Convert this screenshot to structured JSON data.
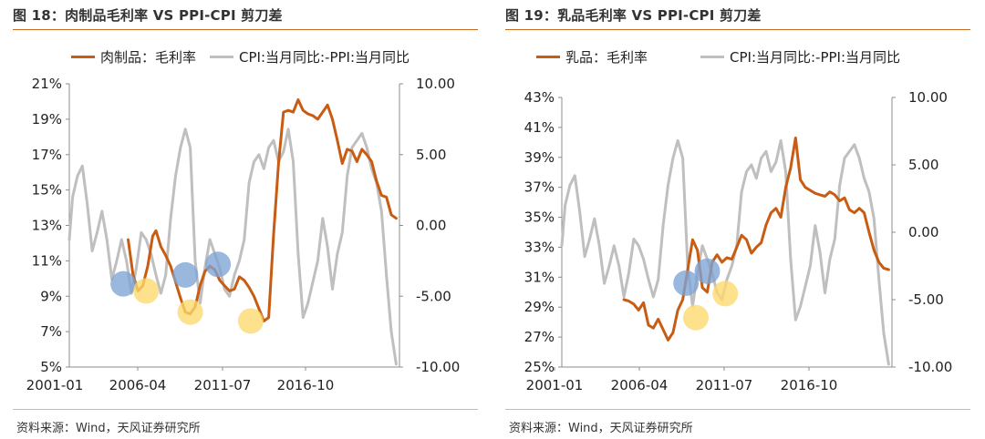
{
  "source_text": "资料来源：Wind，天风证券研究所",
  "colors": {
    "primary": "#c85c13",
    "secondary": "#bfbfbf",
    "bubble_blue": "#7ea3d3",
    "bubble_yellow": "#fcd96d"
  },
  "chart_data": [
    {
      "type": "line",
      "title": "图 18：肉制品毛利率 VS PPI-CPI 剪刀差",
      "legend": [
        "肉制品：毛利率",
        "CPI:当月同比:-PPI:当月同比"
      ],
      "legend_placement": "top",
      "x_ticks": [
        "2001-01",
        "2006-04",
        "2011-07",
        "2016-10"
      ],
      "y_left": {
        "ticks": [
          "21%",
          "19%",
          "17%",
          "15%",
          "13%",
          "11%",
          "9%",
          "7%",
          "5%"
        ],
        "range": [
          5,
          21
        ]
      },
      "y_right": {
        "ticks": [
          "10.00",
          "5.00",
          "0.00",
          "-5.00",
          "-10.00"
        ],
        "range": [
          -10,
          10
        ]
      },
      "x_range": [
        2001.0,
        2021.2
      ],
      "series": [
        {
          "name": "肉制品：毛利率",
          "axis": "left",
          "x": [
            2004.6,
            2004.9,
            2005.2,
            2005.5,
            2005.8,
            2006.1,
            2006.3,
            2006.6,
            2006.9,
            2007.2,
            2007.5,
            2007.8,
            2008.1,
            2008.4,
            2008.7,
            2009.0,
            2009.3,
            2009.6,
            2009.9,
            2010.2,
            2010.5,
            2010.8,
            2011.1,
            2011.4,
            2011.7,
            2012.0,
            2012.3,
            2012.6,
            2012.9,
            2013.2,
            2013.5,
            2013.8,
            2014.1,
            2014.4,
            2014.7,
            2015.0,
            2015.3,
            2015.6,
            2015.9,
            2016.2,
            2016.5,
            2016.8,
            2017.1,
            2017.4,
            2017.7,
            2018.0,
            2018.3,
            2018.6,
            2018.9,
            2019.2,
            2019.5,
            2019.8,
            2020.1,
            2020.4,
            2020.7,
            2021.0
          ],
          "values": [
            12.2,
            10.2,
            9.3,
            9.6,
            10.7,
            12.4,
            12.7,
            11.8,
            11.3,
            10.7,
            9.8,
            8.9,
            8.1,
            8.0,
            8.4,
            9.6,
            10.4,
            10.7,
            10.5,
            9.9,
            9.6,
            9.3,
            9.4,
            10.1,
            9.9,
            9.5,
            9.0,
            8.3,
            7.6,
            7.8,
            12.5,
            16.5,
            19.4,
            19.5,
            19.4,
            20.1,
            19.5,
            19.3,
            19.2,
            19.0,
            19.4,
            19.8,
            19.0,
            17.8,
            16.5,
            17.3,
            17.2,
            16.6,
            17.3,
            17.0,
            16.6,
            15.5,
            14.7,
            14.6,
            13.6,
            13.4
          ]
        },
        {
          "name": "CPI:当月同比:-PPI:当月同比",
          "axis": "right",
          "x": [
            2001.0,
            2001.2,
            2001.5,
            2001.8,
            2002.1,
            2002.4,
            2002.7,
            2003.0,
            2003.3,
            2003.6,
            2003.9,
            2004.2,
            2004.5,
            2004.8,
            2005.1,
            2005.4,
            2005.7,
            2006.0,
            2006.3,
            2006.6,
            2006.9,
            2007.2,
            2007.5,
            2007.8,
            2008.1,
            2008.4,
            2008.7,
            2009.0,
            2009.3,
            2009.6,
            2009.9,
            2010.2,
            2010.5,
            2010.8,
            2011.1,
            2011.4,
            2011.7,
            2012.0,
            2012.3,
            2012.6,
            2012.9,
            2013.2,
            2013.5,
            2013.8,
            2014.1,
            2014.4,
            2014.7,
            2015.0,
            2015.3,
            2015.6,
            2015.9,
            2016.2,
            2016.5,
            2016.8,
            2017.1,
            2017.4,
            2017.7,
            2018.0,
            2018.3,
            2018.6,
            2018.9,
            2019.2,
            2019.5,
            2019.8,
            2020.1,
            2020.4,
            2020.7,
            2021.0
          ],
          "values": [
            -1.0,
            2.0,
            3.5,
            4.2,
            1.5,
            -1.8,
            -0.5,
            1.0,
            -1.0,
            -3.8,
            -2.5,
            -1.0,
            -2.5,
            -4.8,
            -3.0,
            -0.5,
            -1.0,
            -2.0,
            -3.5,
            -4.8,
            -3.5,
            0.5,
            3.5,
            5.5,
            6.8,
            5.5,
            -2.5,
            -5.5,
            -3.0,
            -1.0,
            -2.0,
            -3.0,
            -4.5,
            -5.0,
            -3.5,
            -2.5,
            -1.0,
            3.0,
            4.5,
            5.0,
            4.0,
            5.5,
            6.0,
            4.5,
            5.2,
            6.8,
            4.5,
            -2.0,
            -6.5,
            -5.5,
            -4.0,
            -2.5,
            0.5,
            -1.5,
            -4.5,
            -2.0,
            -0.5,
            3.5,
            5.5,
            6.0,
            6.5,
            5.5,
            4.0,
            3.0,
            1.0,
            -3.5,
            -7.5,
            -9.8
          ]
        }
      ],
      "highlights": [
        {
          "x": 2004.3,
          "y": 9.7,
          "color": "blue"
        },
        {
          "x": 2005.7,
          "y": 9.3,
          "color": "yellow"
        },
        {
          "x": 2008.1,
          "y": 10.2,
          "color": "blue"
        },
        {
          "x": 2008.4,
          "y": 8.1,
          "color": "yellow"
        },
        {
          "x": 2010.1,
          "y": 10.8,
          "color": "blue"
        },
        {
          "x": 2012.1,
          "y": 7.6,
          "color": "yellow"
        }
      ]
    },
    {
      "type": "line",
      "title": "图 19：乳品毛利率 VS PPI-CPI 剪刀差",
      "legend": [
        "乳品：毛利率",
        "CPI:当月同比:-PPI:当月同比"
      ],
      "legend_placement": "top",
      "x_ticks": [
        "2001-01",
        "2006-04",
        "2011-07",
        "2016-10"
      ],
      "y_left": {
        "ticks": [
          "43%",
          "41%",
          "39%",
          "37%",
          "35%",
          "33%",
          "31%",
          "29%",
          "27%",
          "25%"
        ],
        "range": [
          25,
          43
        ]
      },
      "y_right": {
        "ticks": [
          "10.00",
          "5.00",
          "0.00",
          "-5.00",
          "-10.00"
        ],
        "range": [
          -10,
          10
        ]
      },
      "x_range": [
        2001.0,
        2021.2
      ],
      "series": [
        {
          "name": "乳品：毛利率",
          "axis": "left",
          "x": [
            2004.8,
            2005.1,
            2005.4,
            2005.7,
            2006.0,
            2006.3,
            2006.6,
            2006.9,
            2007.2,
            2007.5,
            2007.8,
            2008.1,
            2008.4,
            2008.7,
            2009.0,
            2009.3,
            2009.6,
            2009.9,
            2010.2,
            2010.5,
            2010.8,
            2011.1,
            2011.4,
            2011.7,
            2012.0,
            2012.3,
            2012.6,
            2012.9,
            2013.2,
            2013.5,
            2013.8,
            2014.1,
            2014.4,
            2014.7,
            2015.0,
            2015.3,
            2015.6,
            2015.9,
            2016.2,
            2016.5,
            2016.8,
            2017.1,
            2017.4,
            2017.7,
            2018.0,
            2018.3,
            2018.6,
            2018.9,
            2019.2,
            2019.5,
            2019.8,
            2020.1,
            2020.4,
            2020.7,
            2021.0
          ],
          "values": [
            29.5,
            29.4,
            29.2,
            28.8,
            29.3,
            27.8,
            27.6,
            28.2,
            27.5,
            26.8,
            27.3,
            28.8,
            29.5,
            31.5,
            33.5,
            32.8,
            30.3,
            30.0,
            32.0,
            32.5,
            32.0,
            32.3,
            32.2,
            33.0,
            33.8,
            33.5,
            32.6,
            33.0,
            33.3,
            34.5,
            35.3,
            35.6,
            35.0,
            37.0,
            38.3,
            40.3,
            37.5,
            37.0,
            36.8,
            36.6,
            36.5,
            36.4,
            36.7,
            36.5,
            36.1,
            36.3,
            35.5,
            35.3,
            35.6,
            35.3,
            34.0,
            32.8,
            32.0,
            31.6,
            31.5
          ]
        },
        {
          "name": "CPI:当月同比:-PPI:当月同比",
          "axis": "right",
          "x": [
            2001.0,
            2001.2,
            2001.5,
            2001.8,
            2002.1,
            2002.4,
            2002.7,
            2003.0,
            2003.3,
            2003.6,
            2003.9,
            2004.2,
            2004.5,
            2004.8,
            2005.1,
            2005.4,
            2005.7,
            2006.0,
            2006.3,
            2006.6,
            2006.9,
            2007.2,
            2007.5,
            2007.8,
            2008.1,
            2008.4,
            2008.7,
            2009.0,
            2009.3,
            2009.6,
            2009.9,
            2010.2,
            2010.5,
            2010.8,
            2011.1,
            2011.4,
            2011.7,
            2012.0,
            2012.3,
            2012.6,
            2012.9,
            2013.2,
            2013.5,
            2013.8,
            2014.1,
            2014.4,
            2014.7,
            2015.0,
            2015.3,
            2015.6,
            2015.9,
            2016.2,
            2016.5,
            2016.8,
            2017.1,
            2017.4,
            2017.7,
            2018.0,
            2018.3,
            2018.6,
            2018.9,
            2019.2,
            2019.5,
            2019.8,
            2020.1,
            2020.4,
            2020.7,
            2021.0
          ],
          "values": [
            -1.0,
            2.0,
            3.5,
            4.2,
            1.5,
            -1.8,
            -0.5,
            1.0,
            -1.0,
            -3.8,
            -2.5,
            -1.0,
            -2.5,
            -4.8,
            -3.0,
            -0.5,
            -1.0,
            -2.0,
            -3.5,
            -4.8,
            -3.5,
            0.5,
            3.5,
            5.5,
            6.8,
            5.5,
            -2.5,
            -5.5,
            -3.0,
            -1.0,
            -2.0,
            -3.0,
            -4.5,
            -5.0,
            -3.5,
            -2.5,
            -1.0,
            3.0,
            4.5,
            5.0,
            4.0,
            5.5,
            6.0,
            4.5,
            5.2,
            6.8,
            4.5,
            -2.0,
            -6.5,
            -5.5,
            -4.0,
            -2.5,
            0.5,
            -1.5,
            -4.5,
            -2.0,
            -0.5,
            3.5,
            5.5,
            6.0,
            6.5,
            5.5,
            4.0,
            3.0,
            1.0,
            -3.5,
            -7.5,
            -9.8
          ]
        }
      ],
      "highlights": [
        {
          "x": 2008.6,
          "y": 30.6,
          "color": "blue"
        },
        {
          "x": 2009.2,
          "y": 28.3,
          "color": "yellow"
        },
        {
          "x": 2009.9,
          "y": 31.4,
          "color": "blue"
        },
        {
          "x": 2011.0,
          "y": 29.9,
          "color": "yellow"
        }
      ]
    }
  ]
}
